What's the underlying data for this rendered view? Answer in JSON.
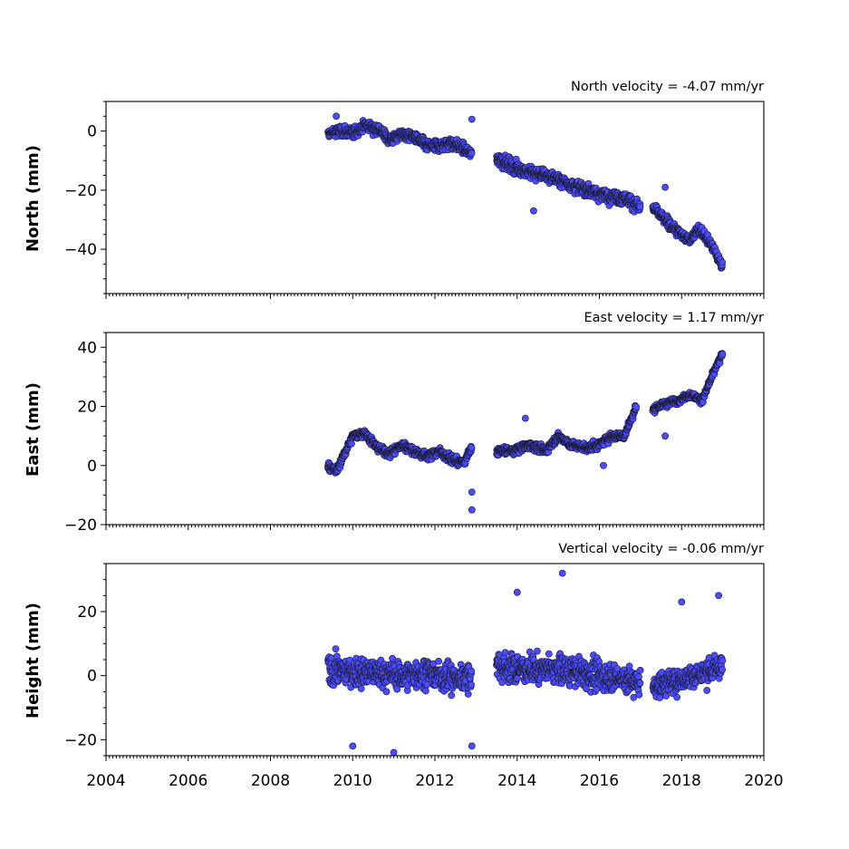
{
  "chart_data": [
    {
      "type": "scatter",
      "id": "north",
      "title": "North velocity = -4.07 mm/yr",
      "ylabel": "North (mm)",
      "xlim": [
        2004,
        2020
      ],
      "ylim": [
        -55,
        10
      ],
      "yticks": [
        0,
        -20,
        -40
      ],
      "ytick_labels": [
        "0",
        "−20",
        "−40"
      ],
      "segments": [
        {
          "x": [
            2009.4,
            2009.7,
            2010.0,
            2010.3,
            2010.6,
            2010.9,
            2011.2,
            2011.5,
            2011.8,
            2012.1,
            2012.4,
            2012.7,
            2012.9
          ],
          "y": [
            -1,
            0,
            -1,
            2,
            1,
            -3,
            -1,
            -2,
            -5,
            -5,
            -4,
            -6,
            -8
          ],
          "noise": 3.5
        },
        {
          "x": [
            2013.5,
            2013.9,
            2014.3,
            2014.7,
            2015.1,
            2015.5,
            2015.9,
            2016.3,
            2016.7,
            2017.0
          ],
          "y": [
            -9,
            -12,
            -14,
            -15,
            -17,
            -19,
            -21,
            -22,
            -23,
            -26
          ],
          "noise": 4
        },
        {
          "x": [
            2017.3,
            2017.6,
            2017.9,
            2018.2,
            2018.4,
            2018.7,
            2019.0
          ],
          "y": [
            -26,
            -30,
            -34,
            -37,
            -33,
            -38,
            -46
          ],
          "noise": 3
        }
      ],
      "outliers": [
        {
          "x": 2009.6,
          "y": 5
        },
        {
          "x": 2012.9,
          "y": 4
        },
        {
          "x": 2017.6,
          "y": -19
        },
        {
          "x": 2014.4,
          "y": -27
        }
      ]
    },
    {
      "type": "scatter",
      "id": "east",
      "title": "East velocity = 1.17 mm/yr",
      "ylabel": "East (mm)",
      "xlim": [
        2004,
        2020
      ],
      "ylim": [
        -20,
        45
      ],
      "yticks": [
        40,
        20,
        0,
        -20
      ],
      "ytick_labels": [
        "40",
        "20",
        "0",
        "−20"
      ],
      "segments": [
        {
          "x": [
            2009.4,
            2009.6,
            2009.8,
            2010.0,
            2010.3,
            2010.6,
            2010.9,
            2011.2,
            2011.5,
            2011.8,
            2012.1,
            2012.4,
            2012.7,
            2012.9
          ],
          "y": [
            0,
            -2,
            4,
            10,
            11,
            6,
            4,
            7,
            5,
            3,
            5,
            2,
            1,
            6
          ],
          "noise": 2.5
        },
        {
          "x": [
            2013.5,
            2013.9,
            2014.3,
            2014.7,
            2015.0,
            2015.3,
            2015.7,
            2016.0,
            2016.3,
            2016.6,
            2016.9
          ],
          "y": [
            5,
            5,
            7,
            5,
            10,
            7,
            6,
            7,
            10,
            10,
            20
          ],
          "noise": 2.5
        },
        {
          "x": [
            2017.3,
            2017.6,
            2017.9,
            2018.2,
            2018.5,
            2018.8,
            2019.0
          ],
          "y": [
            19,
            21,
            22,
            24,
            22,
            32,
            38
          ],
          "noise": 2
        }
      ],
      "outliers": [
        {
          "x": 2012.9,
          "y": -15
        },
        {
          "x": 2012.9,
          "y": -9
        },
        {
          "x": 2017.6,
          "y": 10
        },
        {
          "x": 2014.2,
          "y": 16
        },
        {
          "x": 2016.1,
          "y": 0
        }
      ]
    },
    {
      "type": "scatter",
      "id": "height",
      "title": "Vertical velocity = -0.06 mm/yr",
      "ylabel": "Height (mm)",
      "xlim": [
        2004,
        2020
      ],
      "ylim": [
        -25,
        35
      ],
      "yticks": [
        20,
        0,
        -20
      ],
      "ytick_labels": [
        "20",
        "0",
        "−20"
      ],
      "segments": [
        {
          "x": [
            2009.4,
            2010.0,
            2010.6,
            2011.2,
            2011.8,
            2012.4,
            2012.9
          ],
          "y": [
            2,
            1,
            1,
            0,
            1,
            -1,
            0
          ],
          "noise": 8
        },
        {
          "x": [
            2013.5,
            2014.0,
            2014.5,
            2015.0,
            2015.5,
            2016.0,
            2016.5,
            2017.0
          ],
          "y": [
            3,
            2,
            2,
            2,
            1,
            0,
            -1,
            -2
          ],
          "noise": 8
        },
        {
          "x": [
            2017.3,
            2017.8,
            2018.3,
            2018.8,
            2019.0
          ],
          "y": [
            -3,
            -2,
            0,
            2,
            3
          ],
          "noise": 7
        }
      ],
      "outliers": [
        {
          "x": 2015.1,
          "y": 32
        },
        {
          "x": 2010.0,
          "y": -22
        },
        {
          "x": 2011.0,
          "y": -24
        },
        {
          "x": 2012.9,
          "y": -22
        },
        {
          "x": 2014.0,
          "y": 26
        },
        {
          "x": 2018.0,
          "y": 23
        },
        {
          "x": 2018.9,
          "y": 25
        }
      ]
    }
  ],
  "x_axis": {
    "ticks": [
      2004,
      2006,
      2008,
      2010,
      2012,
      2014,
      2016,
      2018,
      2020
    ],
    "labels": [
      "2004",
      "2006",
      "2008",
      "2010",
      "2012",
      "2014",
      "2016",
      "2018",
      "2020"
    ]
  },
  "colors": {
    "marker_fill": "#4b4bff",
    "marker_edge": "#1a1a2e",
    "axis": "#000000"
  }
}
